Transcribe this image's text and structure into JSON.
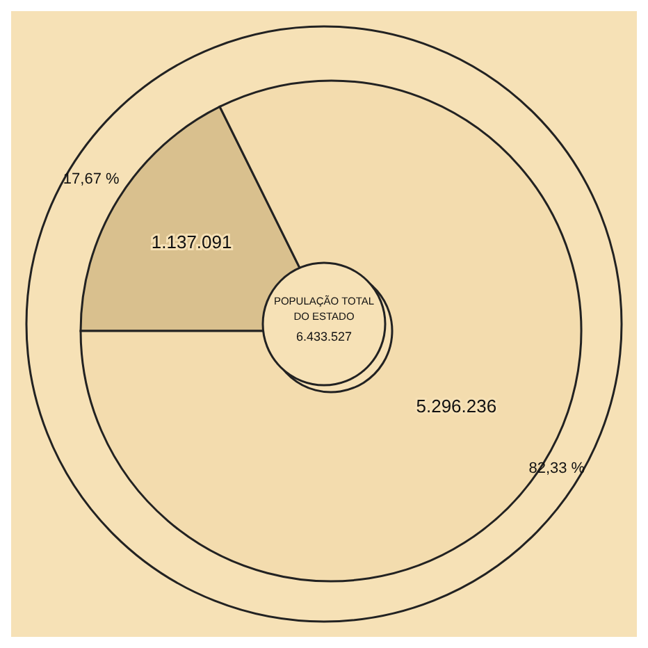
{
  "chart_data": {
    "type": "donut",
    "title": "POPULAÇÃO TOTAL DO ESTADO",
    "subtitle": "6.433.527",
    "categories": [
      null,
      null
    ],
    "values": [
      1137091,
      5296236
    ],
    "colors": [
      "#d9c08e",
      "#f3dcae"
    ],
    "value_labels": [
      "1.137.091",
      "5.296.236"
    ],
    "annotations": [
      "17,67 %",
      "82,33 %"
    ]
  }
}
